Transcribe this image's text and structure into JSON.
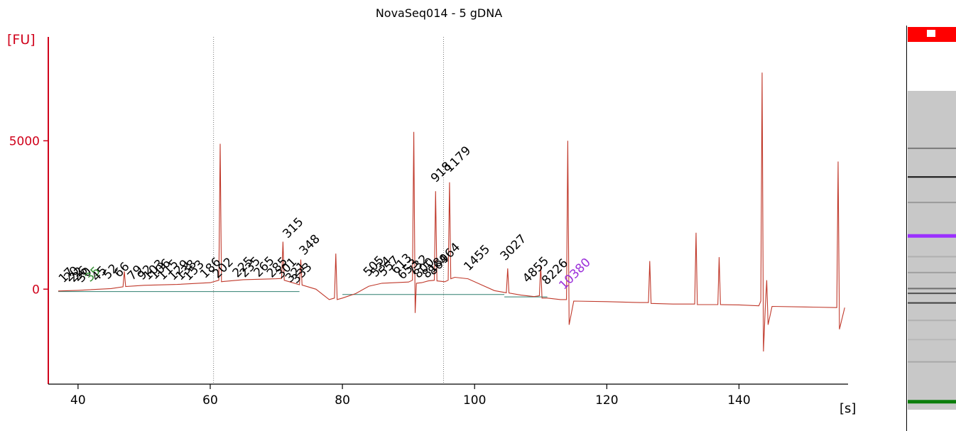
{
  "chart_data": {
    "type": "line",
    "title": "NovaSeq014 - 5 gDNA",
    "xlabel": "[s]",
    "ylabel": "[FU]",
    "xlim": [
      35.5,
      156.5
    ],
    "ylim": [
      -3200,
      8500
    ],
    "x_ticks": [
      40,
      60,
      80,
      100,
      120,
      140
    ],
    "y_ticks": [
      0,
      5000
    ],
    "series": [
      {
        "color": "#c0392b",
        "x": [
          37.0,
          40.0,
          45.0,
          46.8,
          47.0,
          47.2,
          50.0,
          55.0,
          60.0,
          61.3,
          61.5,
          61.7,
          62.0,
          65.0,
          70.0,
          70.8,
          71.0,
          71.2,
          73.5,
          73.7,
          73.9,
          76.0,
          78.0,
          78.8,
          79.0,
          79.2,
          80.0,
          82.0,
          84.0,
          86.0,
          88.0,
          90.0,
          90.6,
          90.8,
          91.0,
          91.2,
          92.0,
          93.0,
          93.9,
          94.1,
          94.3,
          95.5,
          96.0,
          96.2,
          96.4,
          97.0,
          99.0,
          101.0,
          103.0,
          104.8,
          105.0,
          105.2,
          107.0,
          109.0,
          109.8,
          110.0,
          110.2,
          111.0,
          113.0,
          113.9,
          114.1,
          114.3,
          115.0,
          120.0,
          125.0,
          126.3,
          126.5,
          126.7,
          130.0,
          133.3,
          133.5,
          133.7,
          136.8,
          137.0,
          137.2,
          140.0,
          143.0,
          143.3,
          143.5,
          143.7,
          144.0,
          144.2,
          144.4,
          145.0,
          150.0,
          154.8,
          155.0,
          155.2,
          156.0
        ],
        "y": [
          -60,
          -40,
          20,
          80,
          600,
          90,
          130,
          160,
          220,
          300,
          4900,
          250,
          260,
          320,
          350,
          360,
          1600,
          300,
          150,
          1000,
          140,
          0,
          -350,
          -300,
          1200,
          -350,
          -300,
          -150,
          100,
          200,
          220,
          240,
          300,
          5300,
          -800,
          200,
          220,
          280,
          300,
          3300,
          280,
          250,
          300,
          3600,
          350,
          400,
          350,
          150,
          -50,
          -120,
          700,
          -130,
          -200,
          -250,
          -220,
          800,
          -300,
          -300,
          -350,
          -350,
          5000,
          -1200,
          -400,
          -420,
          -450,
          -450,
          950,
          -480,
          -500,
          -500,
          1900,
          -520,
          -520,
          1080,
          -520,
          -530,
          -560,
          -400,
          7300,
          -2100,
          -500,
          300,
          -1200,
          -580,
          -600,
          -620,
          4300,
          -1350,
          -620
        ]
      }
    ],
    "dotted_markers_x": [
      60.5,
      95.3
    ],
    "peak_labels": [
      {
        "text": "17",
        "x": 37.6,
        "y": 150
      },
      {
        "text": "20",
        "x": 38.4,
        "y": 190
      },
      {
        "text": "22",
        "x": 39.1,
        "y": 170
      },
      {
        "text": "26",
        "x": 39.7,
        "y": 200
      },
      {
        "text": "30",
        "x": 40.3,
        "y": 160
      },
      {
        "text": "35",
        "x": 41.6,
        "y": 180,
        "color": "#2e8b2e"
      },
      {
        "text": "45",
        "x": 42.6,
        "y": 200
      },
      {
        "text": "52",
        "x": 44.3,
        "y": 270
      },
      {
        "text": "66",
        "x": 46.0,
        "y": 330
      },
      {
        "text": "79",
        "x": 48.0,
        "y": 230
      },
      {
        "text": "92",
        "x": 49.5,
        "y": 240
      },
      {
        "text": "103",
        "x": 50.4,
        "y": 240
      },
      {
        "text": "106",
        "x": 51.4,
        "y": 260
      },
      {
        "text": "115",
        "x": 52.6,
        "y": 240
      },
      {
        "text": "129",
        "x": 54.2,
        "y": 230
      },
      {
        "text": "138",
        "x": 55.3,
        "y": 230
      },
      {
        "text": "153",
        "x": 56.5,
        "y": 220
      },
      {
        "text": "186",
        "x": 59.0,
        "y": 300
      },
      {
        "text": "202",
        "x": 60.9,
        "y": 300
      },
      {
        "text": "225",
        "x": 63.9,
        "y": 330
      },
      {
        "text": "235",
        "x": 65.0,
        "y": 330
      },
      {
        "text": "265",
        "x": 67.1,
        "y": 340
      },
      {
        "text": "285",
        "x": 69.1,
        "y": 320
      },
      {
        "text": "301",
        "x": 70.5,
        "y": 300
      },
      {
        "text": "315",
        "x": 71.5,
        "y": 1650
      },
      {
        "text": "321",
        "x": 71.9,
        "y": 160
      },
      {
        "text": "333",
        "x": 72.8,
        "y": 130
      },
      {
        "text": "348",
        "x": 74.0,
        "y": 1080
      },
      {
        "text": "505",
        "x": 83.7,
        "y": 360
      },
      {
        "text": "534",
        "x": 84.8,
        "y": 340
      },
      {
        "text": "557",
        "x": 86.0,
        "y": 360
      },
      {
        "text": "613",
        "x": 87.9,
        "y": 440
      },
      {
        "text": "653",
        "x": 88.9,
        "y": 260
      },
      {
        "text": "732",
        "x": 90.4,
        "y": 400
      },
      {
        "text": "800",
        "x": 91.3,
        "y": 300
      },
      {
        "text": "818",
        "x": 92.6,
        "y": 300
      },
      {
        "text": "864",
        "x": 93.5,
        "y": 400
      },
      {
        "text": "918",
        "x": 93.9,
        "y": 3530
      },
      {
        "text": "964",
        "x": 95.2,
        "y": 800
      },
      {
        "text": "1179",
        "x": 96.0,
        "y": 3870
      },
      {
        "text": "1455",
        "x": 98.9,
        "y": 550
      },
      {
        "text": "3027",
        "x": 104.4,
        "y": 900
      },
      {
        "text": "4855",
        "x": 107.8,
        "y": 150
      },
      {
        "text": "8226",
        "x": 110.7,
        "y": 80
      },
      {
        "text": "10380",
        "x": 113.3,
        "y": -80,
        "color": "#9b30d9"
      }
    ]
  },
  "gel": {
    "top_color": "#ff0000",
    "lane_color": "#c8c8c8",
    "bands": [
      {
        "level": 0.18,
        "color": "#7a7a7a"
      },
      {
        "level": 0.27,
        "color": "#111111"
      },
      {
        "level": 0.35,
        "color": "#9a9a9a"
      },
      {
        "level": 0.455,
        "color": "#9b30ff"
      },
      {
        "level": 0.52,
        "color": "#b0b0b0"
      },
      {
        "level": 0.57,
        "color": "#a0a0a0"
      },
      {
        "level": 0.62,
        "color": "#707070"
      },
      {
        "level": 0.635,
        "color": "#505050"
      },
      {
        "level": 0.665,
        "color": "#404040"
      },
      {
        "level": 0.72,
        "color": "#b0b0b0"
      },
      {
        "level": 0.78,
        "color": "#b8b8b8"
      },
      {
        "level": 0.85,
        "color": "#a8a8a8"
      },
      {
        "level": 0.975,
        "color": "#0a7d0a"
      }
    ]
  }
}
